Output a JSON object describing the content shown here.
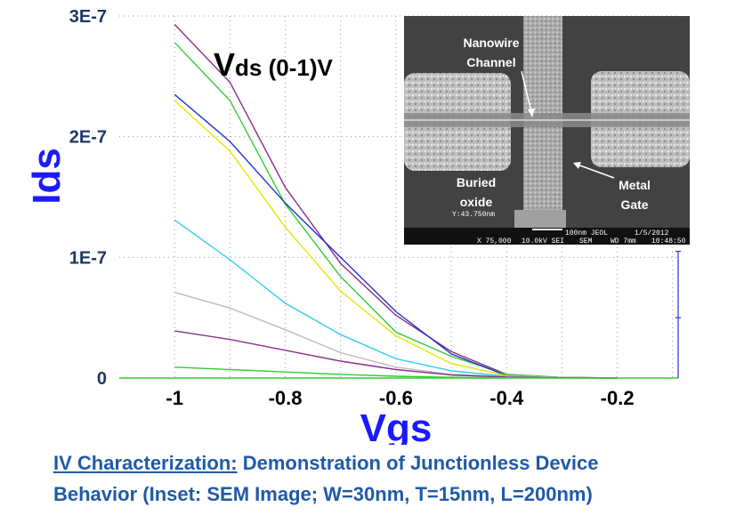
{
  "chart_data": {
    "type": "line",
    "title": "",
    "annotation": {
      "main": "V",
      "sub": "ds",
      "rest": " (0-1)V"
    },
    "xlabel": "Vgs",
    "ylabel": "Ids",
    "xlim": [
      -1.1,
      -0.09
    ],
    "ylim": [
      0,
      3e-07
    ],
    "xticks": [
      -1,
      -0.8,
      -0.6,
      -0.4,
      -0.2
    ],
    "xtick_labels": [
      "-1",
      "-0.8",
      "-0.6",
      "-0.4",
      "-0.2"
    ],
    "yticks": [
      0,
      1e-07,
      2e-07,
      3e-07
    ],
    "ytick_labels": [
      "0",
      "1E-7",
      "2E-7",
      "3E-7"
    ],
    "grid": true,
    "series": [
      {
        "color": "#8b2d8b",
        "x": [
          -1,
          -0.9,
          -0.8,
          -0.7,
          -0.6,
          -0.5,
          -0.4,
          -0.3,
          -0.2
        ],
        "y": [
          2.93e-07,
          2.45e-07,
          1.58e-07,
          9.5e-08,
          5.2e-08,
          2.2e-08,
          3e-09,
          5e-10,
          0
        ]
      },
      {
        "color": "#33cc33",
        "x": [
          -1,
          -0.9,
          -0.8,
          -0.7,
          -0.6,
          -0.5,
          -0.4,
          -0.3,
          -0.2
        ],
        "y": [
          2.78e-07,
          2.3e-07,
          1.44e-07,
          8.4e-08,
          3.8e-08,
          1.8e-08,
          3e-09,
          5e-10,
          0
        ]
      },
      {
        "color": "#2233cc",
        "x": [
          -1,
          -0.9,
          -0.8,
          -0.7,
          -0.6,
          -0.5,
          -0.4,
          -0.3,
          -0.2
        ],
        "y": [
          2.35e-07,
          1.96e-07,
          1.45e-07,
          1e-07,
          5.5e-08,
          2e-08,
          2e-09,
          5e-10,
          0
        ]
      },
      {
        "color": "#e6e600",
        "x": [
          -1,
          -0.9,
          -0.8,
          -0.7,
          -0.6,
          -0.5,
          -0.4,
          -0.3,
          -0.2
        ],
        "y": [
          2.3e-07,
          1.88e-07,
          1.25e-07,
          7.2e-08,
          3.5e-08,
          1.2e-08,
          2e-09,
          5e-10,
          0
        ]
      },
      {
        "color": "#33ccee",
        "x": [
          -1,
          -0.9,
          -0.8,
          -0.7,
          -0.6,
          -0.5,
          -0.4,
          -0.3,
          -0.2
        ],
        "y": [
          1.31e-07,
          9.8e-08,
          6.2e-08,
          3.6e-08,
          1.6e-08,
          6e-09,
          1.5e-09,
          3e-10,
          0
        ]
      },
      {
        "color": "#bbbbbb",
        "x": [
          -1,
          -0.9,
          -0.8,
          -0.7,
          -0.6,
          -0.5,
          -0.4,
          -0.3,
          -0.2
        ],
        "y": [
          7.1e-08,
          5.8e-08,
          4e-08,
          2.1e-08,
          9e-09,
          3e-09,
          1e-09,
          2e-10,
          0
        ]
      },
      {
        "color": "#8b2d8b",
        "x": [
          -1,
          -0.9,
          -0.8,
          -0.7,
          -0.6,
          -0.5,
          -0.4,
          -0.3,
          -0.2
        ],
        "y": [
          3.9e-08,
          3.2e-08,
          2.3e-08,
          1.4e-08,
          7e-09,
          2.5e-09,
          8e-10,
          2e-10,
          0
        ]
      },
      {
        "color": "#33cc33",
        "x": [
          -1,
          -0.9,
          -0.8,
          -0.7,
          -0.6,
          -0.5,
          -0.4,
          -0.3,
          -0.2
        ],
        "y": [
          9e-09,
          7e-09,
          5e-09,
          3e-09,
          1.5e-09,
          6e-10,
          2e-10,
          5e-11,
          0
        ]
      }
    ]
  },
  "inset": {
    "labels": {
      "nanowire_line1": "Nanowire",
      "nanowire_line2": "Channel",
      "buried_line1": "Buried",
      "buried_line2": "oxide",
      "gate_line1": "Metal",
      "gate_line2": "Gate"
    },
    "footer": {
      "scale": "100nm JEOL",
      "date": "1/5/2012",
      "mag": "X 75,000",
      "kv": "10.0kV SEI",
      "sem": "SEM",
      "wd": "WD 7mm",
      "time": "10:48:50",
      "measure": "Y:43.750nm"
    }
  },
  "caption": {
    "underlined": "IV Characterization:",
    "line1_rest": " Demonstration of Junctionless Device",
    "line2": "Behavior (Inset: SEM Image; W=30nm, T=15nm, L=200nm)"
  }
}
